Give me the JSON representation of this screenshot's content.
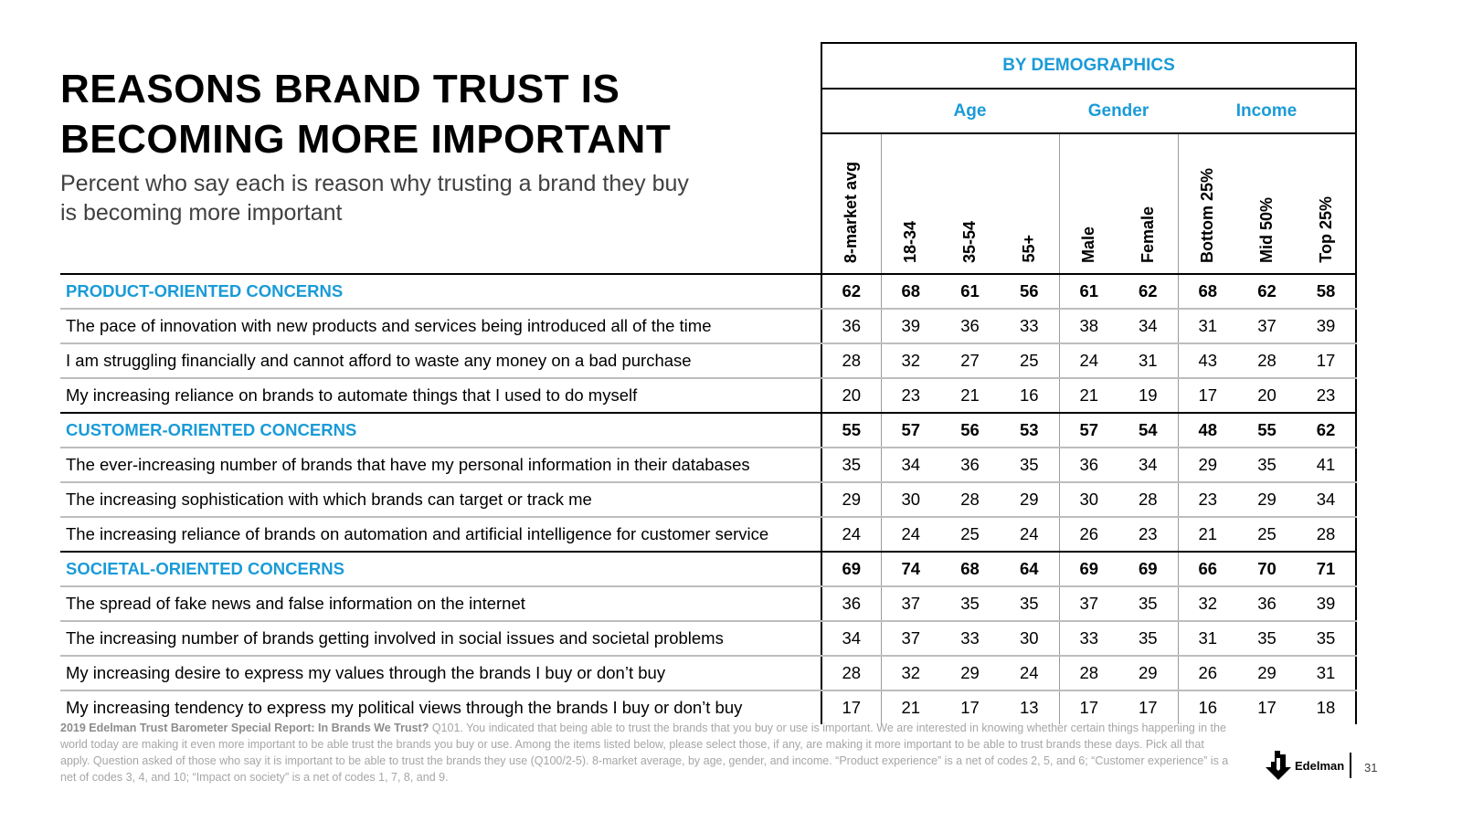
{
  "title_line1": "REASONS BRAND TRUST IS",
  "title_line2": "BECOMING MORE IMPORTANT",
  "subtitle_line1": "Percent who say each is reason why trusting a brand they buy",
  "subtitle_line2": "is becoming more important",
  "header": {
    "by_demographics": "BY DEMOGRAPHICS",
    "groups": {
      "age": "Age",
      "gender": "Gender",
      "income": "Income"
    },
    "columns": [
      "8-market avg",
      "18-34",
      "35-54",
      "55+",
      "Male",
      "Female",
      "Bottom 25%",
      "Mid 50%",
      "Top 25%"
    ]
  },
  "rows": [
    {
      "label": "PRODUCT-ORIENTED CONCERNS",
      "values": [
        "62",
        "68",
        "61",
        "56",
        "61",
        "62",
        "68",
        "62",
        "58"
      ]
    },
    {
      "label": "The pace of innovation with new products and services being introduced all of the time",
      "values": [
        "36",
        "39",
        "36",
        "33",
        "38",
        "34",
        "31",
        "37",
        "39"
      ]
    },
    {
      "label": "I am struggling financially and cannot afford to waste any money on a bad purchase",
      "values": [
        "28",
        "32",
        "27",
        "25",
        "24",
        "31",
        "43",
        "28",
        "17"
      ]
    },
    {
      "label": "My increasing reliance on brands to automate things that I used to do myself",
      "values": [
        "20",
        "23",
        "21",
        "16",
        "21",
        "19",
        "17",
        "20",
        "23"
      ]
    },
    {
      "label": "CUSTOMER-ORIENTED CONCERNS",
      "values": [
        "55",
        "57",
        "56",
        "53",
        "57",
        "54",
        "48",
        "55",
        "62"
      ]
    },
    {
      "label": "The ever-increasing number of brands that have my personal information in their databases",
      "values": [
        "35",
        "34",
        "36",
        "35",
        "36",
        "34",
        "29",
        "35",
        "41"
      ]
    },
    {
      "label": "The increasing sophistication with which brands can target or track me",
      "values": [
        "29",
        "30",
        "28",
        "29",
        "30",
        "28",
        "23",
        "29",
        "34"
      ]
    },
    {
      "label": "The increasing reliance of brands on automation and artificial intelligence for customer service",
      "values": [
        "24",
        "24",
        "25",
        "24",
        "26",
        "23",
        "21",
        "25",
        "28"
      ]
    },
    {
      "label": "SOCIETAL-ORIENTED CONCERNS",
      "values": [
        "69",
        "74",
        "68",
        "64",
        "69",
        "69",
        "66",
        "70",
        "71"
      ]
    },
    {
      "label": "The spread of fake news and false information on the internet",
      "values": [
        "36",
        "37",
        "35",
        "35",
        "37",
        "35",
        "32",
        "36",
        "39"
      ]
    },
    {
      "label": "The increasing number of brands getting involved in social issues and societal problems",
      "values": [
        "34",
        "37",
        "33",
        "30",
        "33",
        "35",
        "31",
        "35",
        "35"
      ]
    },
    {
      "label": "My increasing desire to express my values through the brands I buy or don’t buy",
      "values": [
        "28",
        "32",
        "29",
        "24",
        "28",
        "29",
        "26",
        "29",
        "31"
      ]
    },
    {
      "label": "My increasing tendency to express my political views through the brands I buy or don’t buy",
      "values": [
        "17",
        "21",
        "17",
        "13",
        "17",
        "17",
        "16",
        "17",
        "18"
      ]
    }
  ],
  "footnote": {
    "source": "2019 Edelman Trust Barometer Special Report: In Brands We Trust?",
    "text": " Q101. You indicated that being able to trust the brands that you buy or use is important. We are interested in knowing whether certain things happening in the world today are making it even more important to be able trust the brands you buy or use. Among the items listed below, please select those, if any, are making it more important to be able to trust brands these days. Pick all that apply. Question asked of those who say it is important to be able to trust the brands they use (Q100/2-5). 8-market average, by age, gender, and income. “Product experience” is a net of codes 2, 5, and 6; “Customer experience” is a net of codes 3, 4, and 10; “Impact on society” is a net of codes 1, 7, 8, and 9."
  },
  "logo_text": "Edelman",
  "page_number": "31"
}
